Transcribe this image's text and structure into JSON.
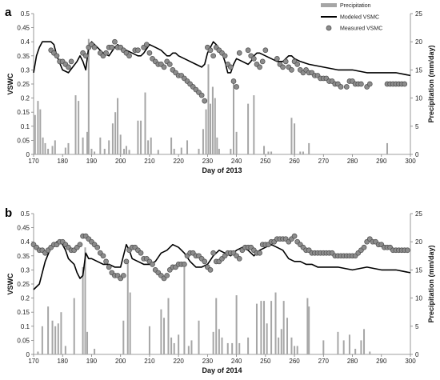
{
  "legend": {
    "precip_label": "Precipitation",
    "modeled_label": "Modeled VSMC",
    "measured_label": "Measured VSMC"
  },
  "colors": {
    "bars": "#a6a6a6",
    "modeled": "#000000",
    "measured_fill": "#8c8c8c",
    "measured_stroke": "#4d4d4d",
    "axis": "#7f7f7f"
  },
  "chart_data": [
    {
      "type": "combo",
      "panel_label": "a",
      "xlabel": "Day of 2013",
      "ylabel": "VSWC",
      "y2label": "Precipitation (mm/day)",
      "xlim": [
        170,
        300
      ],
      "ylim": [
        0,
        0.5
      ],
      "y2lim": [
        0,
        25
      ],
      "xticks": [
        170,
        180,
        190,
        200,
        210,
        220,
        230,
        240,
        250,
        260,
        270,
        280,
        290,
        300
      ],
      "yticks": [
        "0",
        "0.05",
        "0.1",
        "0.15",
        "0.2",
        "0.25",
        "0.3",
        "0.35",
        "0.4",
        "0.45",
        "0.5"
      ],
      "y2ticks": [
        "0",
        "5",
        "10",
        "15",
        "20",
        "25"
      ],
      "series": [
        {
          "name": "Precipitation",
          "kind": "bar",
          "x": [
            170.5,
            171.5,
            172.3,
            173.2,
            174,
            175,
            176.5,
            177.4,
            181,
            182,
            184.5,
            185.5,
            187,
            188.5,
            189,
            190,
            191,
            193,
            194.5,
            196,
            197.3,
            198.2,
            199,
            200,
            201.2,
            202,
            203,
            206,
            207,
            208.5,
            209.5,
            210.5,
            213,
            217.5,
            218.5,
            221,
            223,
            227,
            228.5,
            229.5,
            230.3,
            231,
            231.8,
            232.6,
            233.3,
            234,
            238,
            239,
            240,
            244,
            246,
            249.5,
            251,
            252,
            259,
            260,
            262,
            263,
            265,
            292
          ],
          "values": [
            7,
            9.5,
            8,
            3,
            2,
            1,
            1.5,
            2.5,
            1.2,
            2,
            10.5,
            9.5,
            3,
            4,
            20.5,
            1,
            0.5,
            3,
            1,
            2.5,
            5.5,
            7.5,
            10,
            3.5,
            1,
            1.5,
            0.8,
            6,
            6,
            11,
            2.5,
            3,
            0.8,
            3,
            1,
            1.2,
            2.5,
            1,
            4.5,
            8,
            16,
            9,
            12,
            10,
            3,
            1,
            1,
            13,
            4,
            9,
            10.5,
            1.5,
            0.5,
            0.5,
            6.5,
            5.5,
            0.5,
            0.5,
            2,
            2
          ]
        },
        {
          "name": "Modeled VSMC",
          "kind": "line",
          "x": [
            170,
            171,
            172,
            173,
            175,
            176,
            177,
            178,
            180,
            182,
            185,
            186,
            187,
            188,
            189,
            190,
            191,
            192,
            193,
            194,
            196,
            198,
            199,
            200,
            202,
            204,
            206,
            207,
            208,
            210,
            212,
            214,
            216,
            217,
            218,
            219,
            220,
            222,
            224,
            226,
            228,
            229,
            230,
            231,
            232,
            233,
            235,
            236,
            237,
            238,
            239,
            240,
            242,
            244,
            245,
            246,
            247,
            248,
            250,
            252,
            254,
            256,
            257,
            258,
            259,
            260,
            262,
            265,
            270,
            275,
            280,
            285,
            290,
            295,
            300
          ],
          "values": [
            0.29,
            0.35,
            0.38,
            0.4,
            0.4,
            0.4,
            0.39,
            0.35,
            0.3,
            0.29,
            0.33,
            0.35,
            0.33,
            0.3,
            0.38,
            0.4,
            0.39,
            0.38,
            0.37,
            0.36,
            0.35,
            0.38,
            0.39,
            0.38,
            0.37,
            0.36,
            0.35,
            0.35,
            0.36,
            0.39,
            0.38,
            0.37,
            0.35,
            0.35,
            0.36,
            0.36,
            0.35,
            0.34,
            0.33,
            0.32,
            0.31,
            0.32,
            0.36,
            0.38,
            0.4,
            0.39,
            0.36,
            0.33,
            0.29,
            0.29,
            0.32,
            0.34,
            0.33,
            0.32,
            0.33,
            0.35,
            0.36,
            0.36,
            0.35,
            0.34,
            0.33,
            0.33,
            0.34,
            0.35,
            0.35,
            0.34,
            0.33,
            0.32,
            0.31,
            0.3,
            0.3,
            0.29,
            0.29,
            0.29,
            0.28
          ]
        },
        {
          "name": "Measured VSMC",
          "kind": "scatter",
          "x": [
            176,
            177,
            178,
            179,
            180,
            181,
            182,
            183,
            187,
            188,
            189,
            190,
            191,
            193,
            194,
            195,
            196,
            197,
            198,
            199,
            200,
            201,
            202,
            203,
            205,
            206,
            208,
            209,
            210,
            211,
            212,
            213,
            214,
            215,
            216,
            217,
            218,
            219,
            220,
            221,
            222,
            223,
            224,
            225,
            226,
            227,
            228,
            229,
            230,
            231,
            232,
            233,
            234,
            235,
            236,
            237,
            238,
            239,
            240,
            241,
            244,
            245,
            246,
            247,
            248,
            249,
            250,
            254,
            255,
            256,
            257,
            258,
            259,
            260,
            261,
            262,
            263,
            264,
            265,
            266,
            267,
            268,
            269,
            270,
            271,
            272,
            273,
            274,
            275,
            276,
            278,
            279,
            280,
            281,
            282,
            283,
            285,
            286,
            292,
            293,
            294,
            295,
            296,
            297,
            298
          ],
          "values": [
            0.37,
            0.36,
            0.35,
            0.33,
            0.33,
            0.32,
            0.31,
            0.33,
            0.36,
            0.35,
            0.38,
            0.39,
            0.38,
            0.36,
            0.35,
            0.36,
            0.38,
            0.38,
            0.4,
            0.38,
            0.38,
            0.37,
            0.36,
            0.35,
            0.37,
            0.37,
            0.38,
            0.39,
            0.36,
            0.34,
            0.33,
            0.32,
            0.32,
            0.31,
            0.33,
            0.32,
            0.3,
            0.29,
            0.28,
            0.28,
            0.27,
            0.26,
            0.25,
            0.24,
            0.23,
            0.22,
            0.21,
            0.19,
            0.38,
            0.37,
            0.35,
            0.38,
            0.37,
            0.36,
            0.35,
            0.32,
            0.31,
            0.26,
            0.24,
            0.36,
            0.37,
            0.35,
            0.34,
            0.32,
            0.31,
            0.33,
            0.37,
            0.34,
            0.32,
            0.31,
            0.33,
            0.31,
            0.3,
            0.33,
            0.32,
            0.3,
            0.29,
            0.3,
            0.29,
            0.29,
            0.28,
            0.28,
            0.27,
            0.27,
            0.27,
            0.26,
            0.26,
            0.25,
            0.25,
            0.24,
            0.24,
            0.26,
            0.26,
            0.25,
            0.25,
            0.25,
            0.24,
            0.25,
            0.25,
            0.25,
            0.25,
            0.25,
            0.25,
            0.25,
            0.25
          ]
        }
      ]
    },
    {
      "type": "combo",
      "panel_label": "b",
      "xlabel": "Day of 2014",
      "ylabel": "VSWC",
      "y2label": "Precipitation (mm/day)",
      "xlim": [
        170,
        300
      ],
      "ylim": [
        0,
        0.5
      ],
      "y2lim": [
        0,
        25
      ],
      "xticks": [
        170,
        180,
        190,
        200,
        210,
        220,
        230,
        240,
        250,
        260,
        270,
        280,
        290,
        300
      ],
      "yticks": [
        "0",
        "0.05",
        "0.1",
        "0.15",
        "0.2",
        "0.25",
        "0.3",
        "0.35",
        "0.4",
        "0.45",
        "0.5"
      ],
      "y2ticks": [
        "0",
        "5",
        "10",
        "15",
        "20",
        "25"
      ],
      "series": [
        {
          "name": "Precipitation",
          "kind": "bar",
          "x": [
            171.5,
            173,
            175,
            176.5,
            177.5,
            178.5,
            179.5,
            181,
            184,
            187,
            187.8,
            188.5,
            191,
            201,
            202.5,
            203.3,
            210,
            214,
            215,
            216.5,
            217.5,
            218.5,
            220,
            222,
            223.5,
            224.5,
            227,
            232,
            233,
            234,
            235,
            237,
            238.5,
            240,
            241,
            244,
            247,
            248.5,
            249.5,
            250.5,
            252,
            253.5,
            254.5,
            255.5,
            256.3,
            257.5,
            259,
            260,
            261,
            264.5,
            265,
            270,
            275,
            277,
            279,
            281,
            283,
            284,
            286
          ],
          "values": [
            0.5,
            5,
            8.5,
            6,
            5,
            5.5,
            7.5,
            1.5,
            10,
            15.5,
            19,
            4,
            1,
            6,
            16.5,
            11,
            5,
            8,
            6.5,
            10,
            3,
            2,
            3.5,
            15.5,
            1.5,
            2.5,
            6,
            4,
            10,
            4.5,
            3,
            2,
            2,
            10.5,
            2,
            3,
            9,
            9.5,
            9.5,
            5.5,
            9.5,
            11,
            3,
            4.5,
            9.5,
            6.5,
            3,
            1.5,
            1.5,
            10,
            8.5,
            2.5,
            4,
            2.5,
            3.5,
            1,
            2.5,
            4.5,
            0.5
          ]
        },
        {
          "name": "Modeled VSMC",
          "kind": "line",
          "x": [
            170,
            172,
            174,
            176,
            177,
            178,
            179,
            180,
            181,
            182,
            184,
            185,
            186,
            187,
            188,
            189,
            190,
            192,
            194,
            196,
            198,
            200,
            201,
            202,
            203,
            204,
            206,
            208,
            210,
            212,
            214,
            216,
            218,
            220,
            222,
            224,
            226,
            228,
            230,
            232,
            234,
            236,
            238,
            240,
            242,
            244,
            246,
            248,
            250,
            252,
            254,
            256,
            258,
            260,
            262,
            264,
            266,
            268,
            270,
            275,
            280,
            285,
            290,
            295,
            300
          ],
          "values": [
            0.23,
            0.25,
            0.33,
            0.38,
            0.39,
            0.4,
            0.4,
            0.39,
            0.37,
            0.34,
            0.32,
            0.29,
            0.27,
            0.28,
            0.36,
            0.34,
            0.34,
            0.33,
            0.32,
            0.32,
            0.31,
            0.31,
            0.35,
            0.39,
            0.37,
            0.34,
            0.33,
            0.32,
            0.32,
            0.33,
            0.36,
            0.37,
            0.39,
            0.38,
            0.36,
            0.33,
            0.31,
            0.31,
            0.32,
            0.35,
            0.37,
            0.36,
            0.35,
            0.37,
            0.38,
            0.37,
            0.35,
            0.37,
            0.38,
            0.39,
            0.38,
            0.37,
            0.34,
            0.33,
            0.33,
            0.32,
            0.32,
            0.31,
            0.31,
            0.31,
            0.3,
            0.31,
            0.3,
            0.3,
            0.29
          ]
        },
        {
          "name": "Measured VSMC",
          "kind": "scatter",
          "x": [
            170,
            171,
            172,
            173,
            174,
            175,
            176,
            177,
            178,
            179,
            180,
            181,
            182,
            183,
            184,
            185,
            186,
            187,
            188,
            189,
            190,
            191,
            192,
            193,
            194,
            195,
            196,
            197,
            198,
            199,
            200,
            201,
            202,
            203,
            204,
            205,
            206,
            207,
            208,
            209,
            210,
            211,
            212,
            213,
            214,
            215,
            216,
            217,
            218,
            219,
            220,
            221,
            222,
            223,
            224,
            225,
            226,
            227,
            228,
            229,
            230,
            231,
            232,
            233,
            234,
            235,
            236,
            237,
            238,
            239,
            240,
            241,
            242,
            243,
            244,
            245,
            246,
            247,
            248,
            249,
            250,
            251,
            252,
            253,
            254,
            255,
            256,
            257,
            258,
            259,
            260,
            261,
            262,
            263,
            264,
            265,
            266,
            267,
            268,
            269,
            270,
            271,
            272,
            273,
            274,
            275,
            276,
            277,
            278,
            279,
            280,
            281,
            282,
            283,
            284,
            285,
            286,
            287,
            288,
            289,
            290,
            291,
            292,
            293,
            294,
            295,
            296,
            297,
            298,
            299
          ],
          "values": [
            0.39,
            0.38,
            0.37,
            0.37,
            0.36,
            0.37,
            0.38,
            0.39,
            0.39,
            0.4,
            0.4,
            0.39,
            0.38,
            0.37,
            0.37,
            0.38,
            0.39,
            0.42,
            0.42,
            0.41,
            0.4,
            0.39,
            0.38,
            0.36,
            0.35,
            0.33,
            0.31,
            0.29,
            0.28,
            0.28,
            0.27,
            0.28,
            0.33,
            0.37,
            0.38,
            0.38,
            0.37,
            0.36,
            0.34,
            0.34,
            0.33,
            0.32,
            0.3,
            0.29,
            0.28,
            0.27,
            0.28,
            0.3,
            0.31,
            0.31,
            0.32,
            0.32,
            0.32,
            0.35,
            0.36,
            0.36,
            0.35,
            0.35,
            0.34,
            0.33,
            0.31,
            0.3,
            0.36,
            0.33,
            0.33,
            0.34,
            0.35,
            0.36,
            0.36,
            0.36,
            0.35,
            0.34,
            0.37,
            0.38,
            0.38,
            0.38,
            0.37,
            0.36,
            0.36,
            0.39,
            0.39,
            0.39,
            0.4,
            0.4,
            0.41,
            0.41,
            0.41,
            0.41,
            0.4,
            0.41,
            0.42,
            0.4,
            0.39,
            0.38,
            0.37,
            0.37,
            0.36,
            0.36,
            0.36,
            0.36,
            0.36,
            0.36,
            0.36,
            0.36,
            0.35,
            0.35,
            0.35,
            0.35,
            0.35,
            0.35,
            0.35,
            0.35,
            0.36,
            0.37,
            0.38,
            0.4,
            0.41,
            0.4,
            0.4,
            0.39,
            0.39,
            0.38,
            0.38,
            0.38,
            0.37,
            0.37,
            0.37,
            0.37,
            0.37,
            0.37
          ]
        }
      ]
    }
  ]
}
